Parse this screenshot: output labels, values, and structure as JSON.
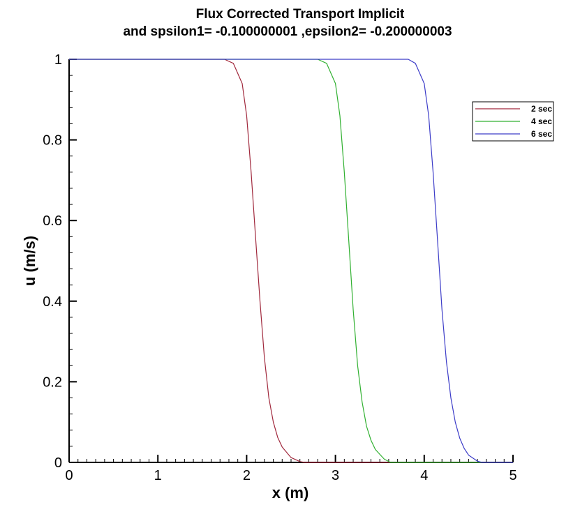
{
  "chart_data": {
    "type": "line",
    "title": "Flux Corrected Transport Implicit",
    "subtitle": "and spsilon1=  -0.100000001  ,epsilon2=  -0.200000003",
    "xlabel": "x (m)",
    "ylabel": "u (m/s)",
    "xlim": [
      0,
      5
    ],
    "ylim": [
      0,
      1
    ],
    "xticks": [
      0,
      1,
      2,
      3,
      4,
      5
    ],
    "yticks": [
      0,
      0.2,
      0.4,
      0.6,
      0.8,
      1
    ],
    "xtick_labels": [
      "0",
      "1",
      "2",
      "3",
      "4",
      "5"
    ],
    "ytick_labels": [
      "0",
      "0.2",
      "0.4",
      "0.6",
      "0.8",
      "1"
    ],
    "grid": false,
    "legend_position": "top-right",
    "series": [
      {
        "name": "2 sec",
        "color": "#a0283c",
        "x": [
          0,
          1.75,
          1.85,
          1.95,
          2.0,
          2.05,
          2.1,
          2.15,
          2.2,
          2.25,
          2.3,
          2.35,
          2.4,
          2.5,
          2.6,
          2.65,
          5
        ],
        "y": [
          1,
          1,
          0.99,
          0.94,
          0.86,
          0.72,
          0.56,
          0.4,
          0.26,
          0.16,
          0.1,
          0.062,
          0.038,
          0.012,
          0.002,
          0,
          0
        ]
      },
      {
        "name": "4 sec",
        "color": "#30b030",
        "x": [
          0,
          2.8,
          2.9,
          3.0,
          3.05,
          3.1,
          3.15,
          3.2,
          3.25,
          3.3,
          3.35,
          3.4,
          3.45,
          3.55,
          3.62,
          5
        ],
        "y": [
          1,
          1,
          0.99,
          0.94,
          0.86,
          0.72,
          0.55,
          0.38,
          0.24,
          0.15,
          0.09,
          0.055,
          0.032,
          0.008,
          0,
          0
        ]
      },
      {
        "name": "6 sec",
        "color": "#3c3cc8",
        "x": [
          0,
          3.82,
          3.9,
          4.0,
          4.05,
          4.1,
          4.15,
          4.2,
          4.25,
          4.3,
          4.35,
          4.4,
          4.45,
          4.5,
          4.6,
          4.65,
          5
        ],
        "y": [
          1,
          1,
          0.99,
          0.94,
          0.86,
          0.72,
          0.55,
          0.38,
          0.25,
          0.16,
          0.1,
          0.06,
          0.035,
          0.018,
          0.003,
          0,
          0
        ]
      }
    ]
  }
}
